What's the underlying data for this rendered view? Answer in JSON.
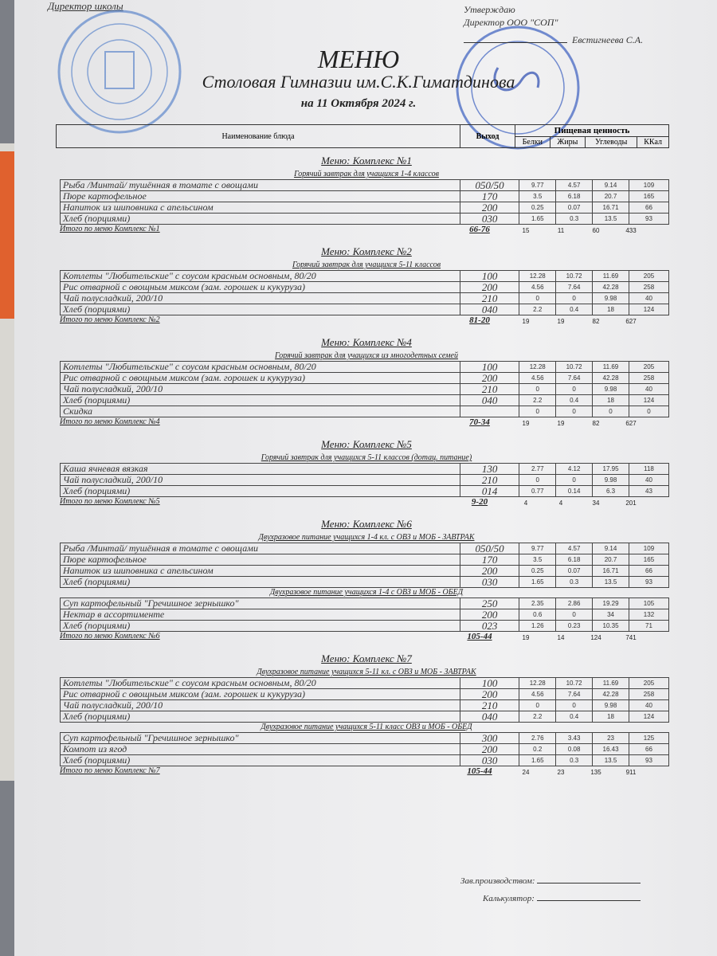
{
  "header": {
    "top_line": "Директор школы",
    "approve_label": "Утверждаю",
    "approve_role": "Директор ООО \"СОП\"",
    "approve_name": "Евстигнеева С.А.",
    "title": "МЕНЮ",
    "subtitle": "Столовая Гимназии им.С.К.Гиматдинова",
    "date": "на 11 Октября 2024 г."
  },
  "columns": {
    "name": "Наименование блюда",
    "exit": "Выход",
    "nutrition": "Пищевая ценность",
    "protein": "Белки",
    "fat": "Жиры",
    "carbs": "Углеводы",
    "kcal": "ККал"
  },
  "seal_colors": {
    "stamp": "#3b6fc4",
    "signature": "#2a4bb0"
  },
  "sections": [
    {
      "title": "Меню: Комплекс №1",
      "groups": [
        {
          "subtitle": "Горячий завтрак для учащихся 1-4 классов",
          "rows": [
            [
              "Рыба  /Минтай/ тушённая в томате с овощами",
              "050/50",
              "9.77",
              "4.57",
              "9.14",
              "109"
            ],
            [
              "Пюре картофельное",
              "170",
              "3.5",
              "6.18",
              "20.7",
              "165"
            ],
            [
              "Напиток из шиповника с апельсином",
              "200",
              "0.25",
              "0.07",
              "16.71",
              "66"
            ],
            [
              "Хлеб (порциями)",
              "030",
              "1.65",
              "0.3",
              "13.5",
              "93"
            ]
          ]
        }
      ],
      "total": [
        "Итого по меню Комплекс №1",
        "66-76",
        "15",
        "11",
        "60",
        "433"
      ]
    },
    {
      "title": "Меню: Комплекс №2",
      "groups": [
        {
          "subtitle": "Горячий завтрак для учащихся 5-11 классов",
          "rows": [
            [
              "Котлеты  \"Любительские\" с соусом красным основным, 80/20",
              "100",
              "12.28",
              "10.72",
              "11.69",
              "205"
            ],
            [
              "Рис отварной с овощным миксом (зам. горошек и кукуруза)",
              "200",
              "4.56",
              "7.64",
              "42.28",
              "258"
            ],
            [
              "Чай полусладкий, 200/10",
              "210",
              "0",
              "0",
              "9.98",
              "40"
            ],
            [
              "Хлеб (порциями)",
              "040",
              "2.2",
              "0.4",
              "18",
              "124"
            ]
          ]
        }
      ],
      "total": [
        "Итого по меню Комплекс №2",
        "81-20",
        "19",
        "19",
        "82",
        "627"
      ]
    },
    {
      "title": "Меню: Комплекс №4",
      "groups": [
        {
          "subtitle": "Горячий завтрак для учащихся из многодетных семей",
          "rows": [
            [
              "Котлеты  \"Любительские\" с соусом красным основным, 80/20",
              "100",
              "12.28",
              "10.72",
              "11.69",
              "205"
            ],
            [
              "Рис отварной с овощным миксом (зам. горошек и кукуруза)",
              "200",
              "4.56",
              "7.64",
              "42.28",
              "258"
            ],
            [
              "Чай полусладкий, 200/10",
              "210",
              "0",
              "0",
              "9.98",
              "40"
            ],
            [
              "Хлеб (порциями)",
              "040",
              "2.2",
              "0.4",
              "18",
              "124"
            ],
            [
              "Скидка",
              "",
              "0",
              "0",
              "0",
              "0"
            ]
          ]
        }
      ],
      "total": [
        "Итого по меню Комплекс №4",
        "70-34",
        "19",
        "19",
        "82",
        "627"
      ]
    },
    {
      "title": "Меню: Комплекс №5",
      "groups": [
        {
          "subtitle": "Горячий завтрак для учащихся 5-11 классов (дотац. питание)",
          "rows": [
            [
              "Каша ячневая вязкая",
              "130",
              "2.77",
              "4.12",
              "17.95",
              "118"
            ],
            [
              "Чай полусладкий, 200/10",
              "210",
              "0",
              "0",
              "9.98",
              "40"
            ],
            [
              "Хлеб (порциями)",
              "014",
              "0.77",
              "0.14",
              "6.3",
              "43"
            ]
          ]
        }
      ],
      "total": [
        "Итого по меню Комплекс №5",
        "9-20",
        "4",
        "4",
        "34",
        "201"
      ]
    },
    {
      "title": "Меню: Комплекс №6",
      "groups": [
        {
          "subtitle": "Двухразовое питание учащихся 1-4 кл. с ОВЗ и МОБ - ЗАВТРАК",
          "rows": [
            [
              "Рыба  /Минтай/ тушённая в томате с овощами",
              "050/50",
              "9.77",
              "4.57",
              "9.14",
              "109"
            ],
            [
              "Пюре картофельное",
              "170",
              "3.5",
              "6.18",
              "20.7",
              "165"
            ],
            [
              "Напиток из шиповника с апельсином",
              "200",
              "0.25",
              "0.07",
              "16.71",
              "66"
            ],
            [
              "Хлеб (порциями)",
              "030",
              "1.65",
              "0.3",
              "13.5",
              "93"
            ]
          ]
        },
        {
          "subtitle": "Двухразовое питание учащихся 1-4 с ОВЗ и МОБ - ОБЕД",
          "rows": [
            [
              "Суп картофельный \"Гречишное зернышко\"",
              "250",
              "2.35",
              "2.86",
              "19.29",
              "105"
            ],
            [
              "Нектар в ассортименте",
              "200",
              "0.6",
              "0",
              "34",
              "132"
            ],
            [
              "Хлеб (порциями)",
              "023",
              "1.26",
              "0.23",
              "10.35",
              "71"
            ]
          ]
        }
      ],
      "total": [
        "Итого по меню Комплекс №6",
        "105-44",
        "19",
        "14",
        "124",
        "741"
      ]
    },
    {
      "title": "Меню: Комплекс №7",
      "groups": [
        {
          "subtitle": "Двухразовое питание учащихся 5-11 кл. с  ОВЗ и МОБ - ЗАВТРАК",
          "rows": [
            [
              "Котлеты  \"Любительские\" с соусом красным основным, 80/20",
              "100",
              "12.28",
              "10.72",
              "11.69",
              "205"
            ],
            [
              "Рис отварной с овощным миксом (зам. горошек и кукуруза)",
              "200",
              "4.56",
              "7.64",
              "42.28",
              "258"
            ],
            [
              "Чай полусладкий, 200/10",
              "210",
              "0",
              "0",
              "9.98",
              "40"
            ],
            [
              "Хлеб (порциями)",
              "040",
              "2.2",
              "0.4",
              "18",
              "124"
            ]
          ]
        },
        {
          "subtitle": "Двухразовое питание учащихся 5-11 класс ОВЗ и МОБ - ОБЕД",
          "rows": [
            [
              "Суп картофельный \"Гречишное зернышко\"",
              "300",
              "2.76",
              "3.43",
              "23",
              "125"
            ],
            [
              "Компот из  ягод",
              "200",
              "0.2",
              "0.08",
              "16.43",
              "66"
            ],
            [
              "Хлеб (порциями)",
              "030",
              "1.65",
              "0.3",
              "13.5",
              "93"
            ]
          ]
        }
      ],
      "total": [
        "Итого по меню Комплекс №7",
        "105-44",
        "24",
        "23",
        "135",
        "911"
      ]
    }
  ],
  "footer": {
    "production_head": "Зав.производством:",
    "calculator": "Калькулятор:"
  }
}
